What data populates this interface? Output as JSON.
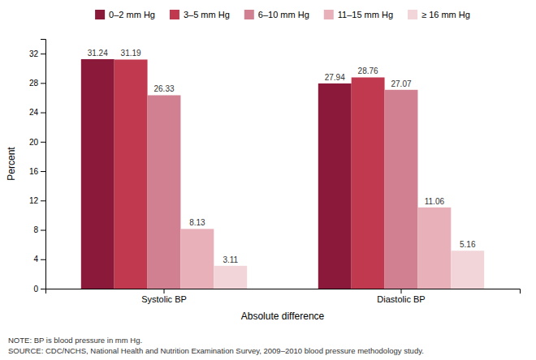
{
  "chart_data": {
    "type": "bar",
    "categories": [
      "Systolic BP",
      "Diastolic BP"
    ],
    "series": [
      {
        "name": "0–2 mm Hg",
        "color": "#8B1A3A",
        "values": [
          31.24,
          27.94
        ]
      },
      {
        "name": "3–5 mm Hg",
        "color": "#C0394F",
        "values": [
          31.19,
          28.76
        ]
      },
      {
        "name": "6–10 mm Hg",
        "color": "#D08090",
        "values": [
          26.33,
          27.07
        ]
      },
      {
        "name": "11–15 mm Hg",
        "color": "#E8B0B8",
        "values": [
          8.13,
          11.06
        ]
      },
      {
        "name": "≥ 16 mm Hg",
        "color": "#F2D5D8",
        "values": [
          3.11,
          5.16
        ]
      }
    ],
    "xlabel": "Absolute difference",
    "ylabel": "Percent",
    "ylim": [
      0,
      34
    ],
    "yticks": [
      0,
      4,
      8,
      12,
      16,
      20,
      24,
      28,
      32
    ],
    "annotations": [
      "NOTE: BP is blood pressure in mm Hg.",
      "SOURCE: CDC/NCHS, National Health and Nutrition Examination Survey, 2009–2010 blood pressure methodology study."
    ],
    "data_labels": true,
    "grid": false,
    "legend": "top"
  }
}
